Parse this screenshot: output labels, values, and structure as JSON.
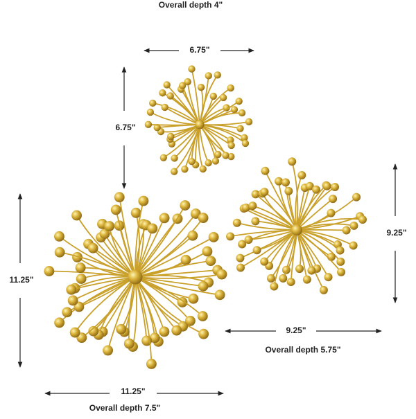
{
  "depth_small": "Overall depth 4\"",
  "small": {
    "width": "6.75\"",
    "height": "6.75\""
  },
  "medium": {
    "width": "9.25\"",
    "height": "9.25\"",
    "depth": "Overall depth 5.75\""
  },
  "large": {
    "width": "11.25\"",
    "height": "11.25\"",
    "depth": "Overall depth 7.5\""
  }
}
